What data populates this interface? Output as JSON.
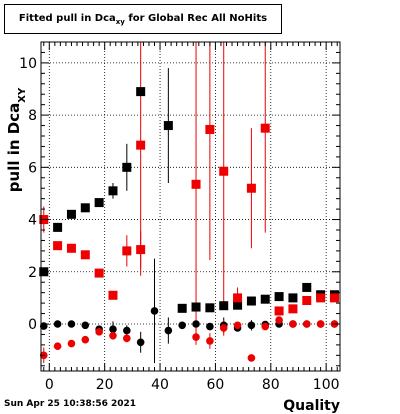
{
  "page": {
    "timestamp": "Sun Apr 25 10:38:56 2021"
  },
  "chart_data": {
    "type": "scatter",
    "title_main": "Fitted pull in Dca",
    "title_sub": "xy",
    "title_tail": " for Global Rec All NoHits",
    "xlabel": "Quality",
    "ylabel_main": "pull in Dca",
    "ylabel_sub": "XY",
    "xlim": [
      -3,
      105
    ],
    "ylim": [
      -1.8,
      10.8
    ],
    "xticks": [
      0,
      20,
      40,
      60,
      80,
      100
    ],
    "yticks": [
      0,
      2,
      4,
      6,
      8,
      10
    ],
    "grid": true,
    "series": [
      {
        "color": "#000000",
        "marker": "square",
        "points": [
          [
            -2,
            2.0,
            0.0
          ],
          [
            3,
            3.7,
            0.0
          ],
          [
            8,
            4.2,
            0.0
          ],
          [
            13,
            4.45,
            0.0
          ],
          [
            18,
            4.65,
            0.0
          ],
          [
            23,
            5.1,
            0.3
          ],
          [
            28,
            6.0,
            0.9
          ],
          [
            33,
            8.9,
            0.0
          ],
          [
            43,
            7.6,
            2.2
          ],
          [
            48,
            0.6,
            0.0
          ],
          [
            53,
            0.65,
            0.0
          ],
          [
            58,
            0.62,
            0.0
          ],
          [
            63,
            0.7,
            0.0
          ],
          [
            68,
            0.72,
            0.0
          ],
          [
            73,
            0.88,
            0.0
          ],
          [
            78,
            0.95,
            0.0
          ],
          [
            83,
            1.05,
            0.0
          ],
          [
            88,
            1.0,
            0.0
          ],
          [
            93,
            1.4,
            0.0
          ],
          [
            98,
            1.12,
            0.0
          ],
          [
            103,
            1.12,
            0.0
          ]
        ]
      },
      {
        "color": "#ee0000",
        "marker": "square",
        "points": [
          [
            -2,
            4.0,
            0.5
          ],
          [
            3,
            3.0,
            0.0
          ],
          [
            8,
            2.9,
            0.0
          ],
          [
            13,
            2.65,
            0.0
          ],
          [
            18,
            1.95,
            0.0
          ],
          [
            23,
            1.1,
            0.0
          ],
          [
            28,
            2.8,
            0.6
          ],
          [
            33,
            2.85,
            0.7
          ],
          [
            33,
            6.85,
            5.0
          ],
          [
            53,
            5.35,
            6.0
          ],
          [
            58,
            7.45,
            5.0
          ],
          [
            63,
            5.85,
            5.0
          ],
          [
            68,
            1.0,
            0.4
          ],
          [
            73,
            5.2,
            2.3
          ],
          [
            78,
            7.5,
            4.0
          ],
          [
            83,
            0.5,
            0.0
          ],
          [
            88,
            0.58,
            0.0
          ],
          [
            93,
            0.9,
            0.0
          ],
          [
            98,
            1.0,
            0.0
          ],
          [
            103,
            1.0,
            0.0
          ]
        ]
      },
      {
        "color": "#000000",
        "marker": "circle",
        "points": [
          [
            -2,
            -0.08,
            0.0
          ],
          [
            3,
            0.0,
            0.0
          ],
          [
            8,
            0.0,
            0.0
          ],
          [
            13,
            -0.05,
            0.0
          ],
          [
            18,
            -0.2,
            0.0
          ],
          [
            23,
            -0.2,
            0.3
          ],
          [
            28,
            -0.25,
            0.2
          ],
          [
            33,
            -0.7,
            0.4
          ],
          [
            38,
            0.5,
            2.0
          ],
          [
            43,
            -0.25,
            0.5
          ],
          [
            48,
            -0.05,
            0.0
          ],
          [
            53,
            0.0,
            0.0
          ],
          [
            58,
            -0.1,
            0.0
          ],
          [
            63,
            -0.05,
            0.3
          ],
          [
            68,
            -0.15,
            0.0
          ],
          [
            73,
            -0.05,
            0.2
          ],
          [
            78,
            -0.02,
            0.0
          ],
          [
            83,
            0.0,
            0.0
          ],
          [
            88,
            0.0,
            0.0
          ],
          [
            93,
            0.0,
            0.0
          ],
          [
            98,
            0.0,
            0.0
          ],
          [
            103,
            0.0,
            0.0
          ]
        ]
      },
      {
        "color": "#ee0000",
        "marker": "circle",
        "points": [
          [
            -2,
            -1.2,
            0.3
          ],
          [
            3,
            -0.85,
            0.0
          ],
          [
            8,
            -0.75,
            0.0
          ],
          [
            13,
            -0.6,
            0.0
          ],
          [
            18,
            -0.3,
            0.0
          ],
          [
            23,
            -0.45,
            0.15
          ],
          [
            28,
            -0.55,
            0.15
          ],
          [
            53,
            -0.5,
            0.3
          ],
          [
            58,
            -0.65,
            0.3
          ],
          [
            63,
            -0.15,
            0.3
          ],
          [
            68,
            -0.05,
            0.0
          ],
          [
            73,
            -1.3,
            0.0
          ],
          [
            78,
            -0.1,
            0.0
          ],
          [
            83,
            0.15,
            0.0
          ],
          [
            88,
            0.0,
            0.0
          ],
          [
            93,
            0.0,
            0.0
          ],
          [
            98,
            0.0,
            0.0
          ],
          [
            103,
            0.0,
            0.0
          ]
        ]
      }
    ]
  }
}
